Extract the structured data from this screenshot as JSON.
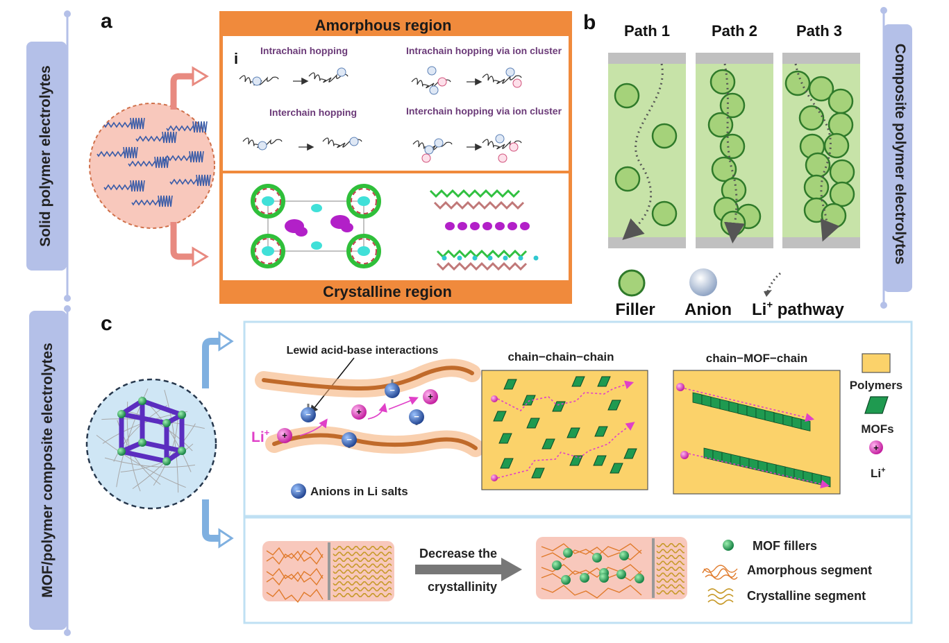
{
  "panels": {
    "a": {
      "letter": "a",
      "side_label": "Solid polymer electrolytes",
      "amorphous_title": "Amorphous region",
      "roman": "i",
      "mechanisms": [
        "Intrachain hopping",
        "Intrachain hopping via ion cluster",
        "Interchain hopping",
        "Interchain hopping via ion cluster"
      ],
      "crystalline_title": "Crystalline region"
    },
    "b": {
      "letter": "b",
      "side_label": "Composite polymer electrolytes",
      "paths": [
        "Path 1",
        "Path 2",
        "Path 3"
      ],
      "legend": {
        "filler": "Filler",
        "anion": "Anion",
        "pathway_prefix": "Li",
        "pathway_sup": "+",
        "pathway_suffix": " pathway"
      }
    },
    "c": {
      "letter": "c",
      "side_label": "MOF/polymer  composite electrolytes",
      "lewis_label": "Lewid acid-base interactions",
      "li_label": "Li",
      "li_sup": "+",
      "anions_label": "Anions in Li salts",
      "chain_chain_chain": "chain−chain−chain",
      "chain_mof_chain": "chain−MOF−chain",
      "legend": {
        "polymers": "Polymers",
        "mofs": "MOFs",
        "li": "Li",
        "li_sup": "+"
      },
      "decrease_line1": "Decrease the",
      "decrease_line2": "crystallinity",
      "bottom_legend": {
        "mof_fillers": "MOF fillers",
        "amorphous_segment": "Amorphous segment",
        "crystalline_segment": "Crystalline segment"
      }
    }
  },
  "colors": {
    "side_label_bg": "#b4c0e8",
    "orange_header": "#f08a3c",
    "pink_sphere": "#f8c8bc",
    "green_band": "#c7e3a8",
    "filler_green": "#a5d27a",
    "mof_green": "#1f9a50",
    "polymer_yellow": "#fbd26a",
    "light_blue_sphere": "#cfe6f5",
    "panel_c_border": "#bfe0f3",
    "magenta": "#e040c8"
  }
}
